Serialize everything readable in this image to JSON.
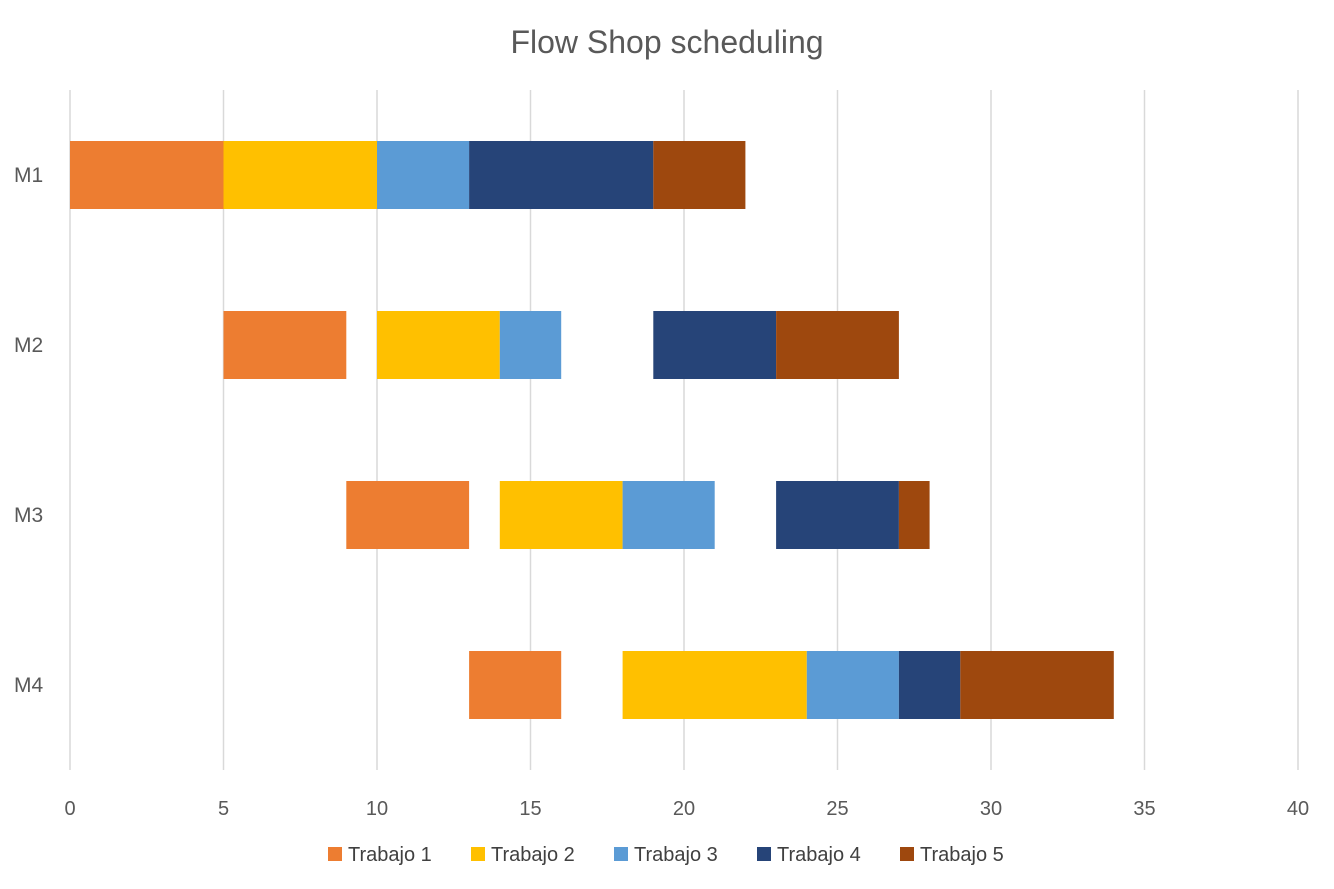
{
  "chart_data": {
    "type": "bar",
    "orientation": "horizontal-stacked-gantt",
    "title": "Flow Shop scheduling",
    "xlabel": "",
    "ylabel": "",
    "xlim": [
      0,
      40
    ],
    "xticks": [
      0,
      5,
      10,
      15,
      20,
      25,
      30,
      35,
      40
    ],
    "grid": true,
    "legend_position": "bottom",
    "categories": [
      "M1",
      "M2",
      "M3",
      "M4"
    ],
    "series": [
      {
        "name": "Trabajo 1",
        "color": "#ED7D31",
        "intervals": [
          [
            0,
            5
          ],
          [
            5,
            9
          ],
          [
            9,
            13
          ],
          [
            13,
            16
          ]
        ]
      },
      {
        "name": "Trabajo 2",
        "color": "#FFC000",
        "intervals": [
          [
            5,
            10
          ],
          [
            10,
            14
          ],
          [
            14,
            18
          ],
          [
            18,
            24
          ]
        ]
      },
      {
        "name": "Trabajo 3",
        "color": "#5B9BD5",
        "intervals": [
          [
            10,
            13
          ],
          [
            14,
            16
          ],
          [
            18,
            21
          ],
          [
            24,
            27
          ]
        ]
      },
      {
        "name": "Trabajo 4",
        "color": "#264478",
        "intervals": [
          [
            13,
            19
          ],
          [
            19,
            23
          ],
          [
            23,
            27
          ],
          [
            27,
            29
          ]
        ]
      },
      {
        "name": "Trabajo 5",
        "color": "#9E480E",
        "intervals": [
          [
            19,
            22
          ],
          [
            23,
            27
          ],
          [
            27,
            28
          ],
          [
            29,
            34
          ]
        ]
      }
    ]
  }
}
